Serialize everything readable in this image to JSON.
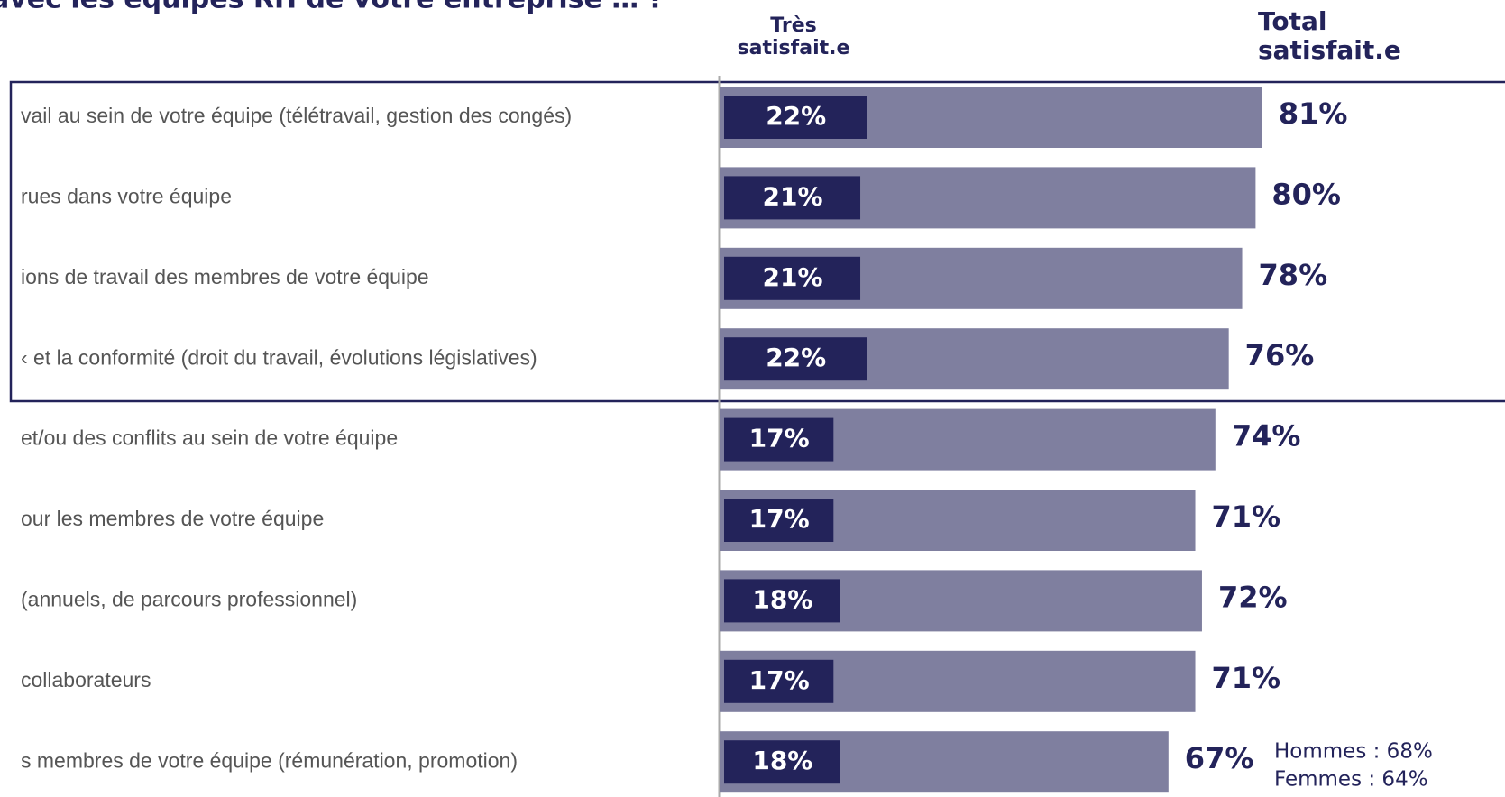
{
  "chart_data": {
    "type": "bar",
    "orientation": "horizontal",
    "title": "avec les équipes RH de votre entreprise … ?",
    "categories": [
      "vail au sein de votre équipe (télétravail, gestion des congés)",
      "rues dans votre équipe",
      "ions de travail des membres de votre équipe",
      "‹ et la conformité (droit du travail, évolutions législatives)",
      "et/ou des conflits au sein de votre équipe",
      "our les membres de votre équipe",
      "(annuels, de parcours professionnel)",
      "collaborateurs",
      "s membres de votre équipe (rémunération, promotion)"
    ],
    "series": [
      {
        "name": "Très satisfait.e",
        "color": "#23235a",
        "values": [
          22,
          21,
          21,
          22,
          17,
          17,
          18,
          17,
          18
        ],
        "value_labels": [
          "22%",
          "21%",
          "21%",
          "22%",
          "17%",
          "17%",
          "18%",
          "17%",
          "18%"
        ]
      },
      {
        "name": "Total satisfait.e",
        "color": "#7f7f9f",
        "values": [
          81,
          80,
          78,
          76,
          74,
          71,
          72,
          71,
          67
        ],
        "value_labels": [
          "81%",
          "80%",
          "78%",
          "76%",
          "74%",
          "71%",
          "72%",
          "71%",
          "67%"
        ]
      }
    ],
    "annotations": [
      "Hommes : 68%",
      "Femmes : 64%"
    ]
  }
}
